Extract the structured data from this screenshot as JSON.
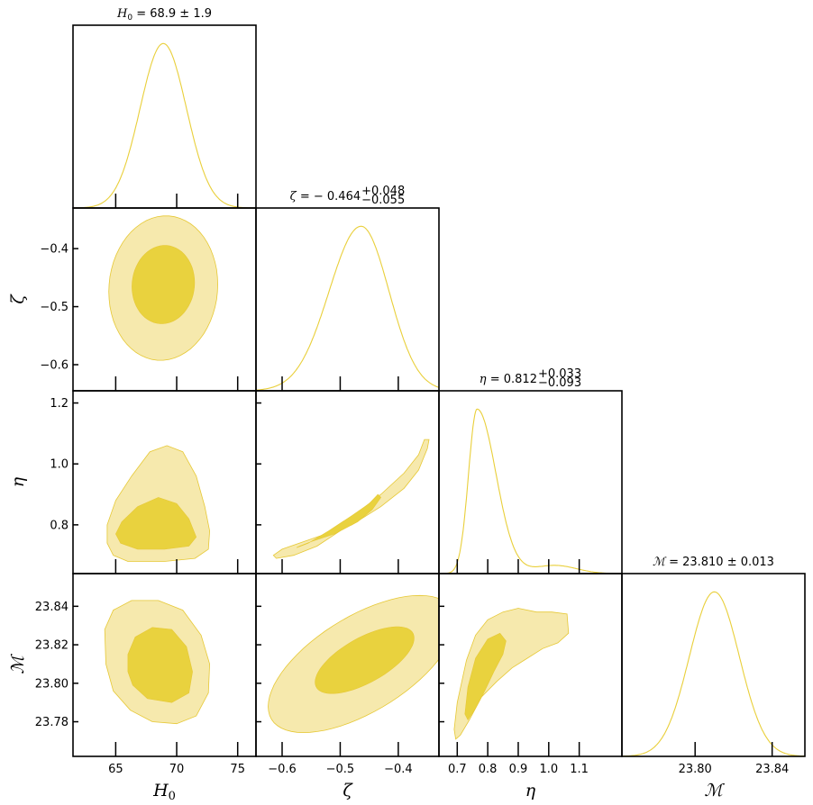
{
  "chart_data": {
    "type": "corner",
    "params": [
      {
        "name": "H0",
        "label_main": "H",
        "label_sub": "0",
        "title_main": " = 68.9 ± 1.9",
        "title_sup": "",
        "title_sub": "",
        "range": [
          61.5,
          76.5
        ],
        "ticks": [
          65,
          70,
          75
        ],
        "tick_labels": [
          "65",
          "70",
          "75"
        ],
        "mean": 68.9,
        "sigma": 1.9
      },
      {
        "name": "zeta",
        "label_main": "ζ",
        "label_sub": "",
        "title_main": " = − 0.464",
        "title_sup": "+0.048",
        "title_sub": "−0.055",
        "range": [
          -0.645,
          -0.33
        ],
        "ticks": [
          -0.6,
          -0.5,
          -0.4
        ],
        "tick_labels": [
          "−0.6",
          "−0.5",
          "−0.4"
        ],
        "mean": -0.464,
        "sigma": 0.05
      },
      {
        "name": "eta",
        "label_main": "η",
        "label_sub": "",
        "title_main": " = 0.812",
        "title_sup": "+0.033",
        "title_sub": "−0.093",
        "range": [
          0.64,
          1.24
        ],
        "ticks": [
          0.7,
          0.8,
          0.9,
          1.0,
          1.1
        ],
        "tick_labels": [
          "0.7",
          "0.8",
          "0.9",
          "1.0",
          "1.1"
        ],
        "left_ticks": [
          0.8,
          1.0,
          1.2
        ],
        "left_tick_labels": [
          "0.8",
          "1.0",
          "1.2"
        ],
        "mean": 0.78,
        "sigma": 0.04
      },
      {
        "name": "M",
        "label_main": "ℳ",
        "label_sub": "",
        "title_main": " = 23.810 ± 0.013",
        "title_sup": "",
        "title_sub": "",
        "range": [
          23.762,
          23.857
        ],
        "ticks": [
          23.8,
          23.84
        ],
        "tick_labels": [
          "23.80",
          "23.84"
        ],
        "left_ticks": [
          23.78,
          23.8,
          23.82,
          23.84
        ],
        "left_tick_labels": [
          "23.78",
          "23.80",
          "23.82",
          "23.84"
        ],
        "mean": 23.81,
        "sigma": 0.013
      }
    ],
    "contour_levels": [
      "68%",
      "95%"
    ],
    "colors": {
      "line": "#e9cf3a",
      "fill_95": "#f6e9ad",
      "fill_68": "#e9d23e",
      "frame": "#000000"
    }
  }
}
